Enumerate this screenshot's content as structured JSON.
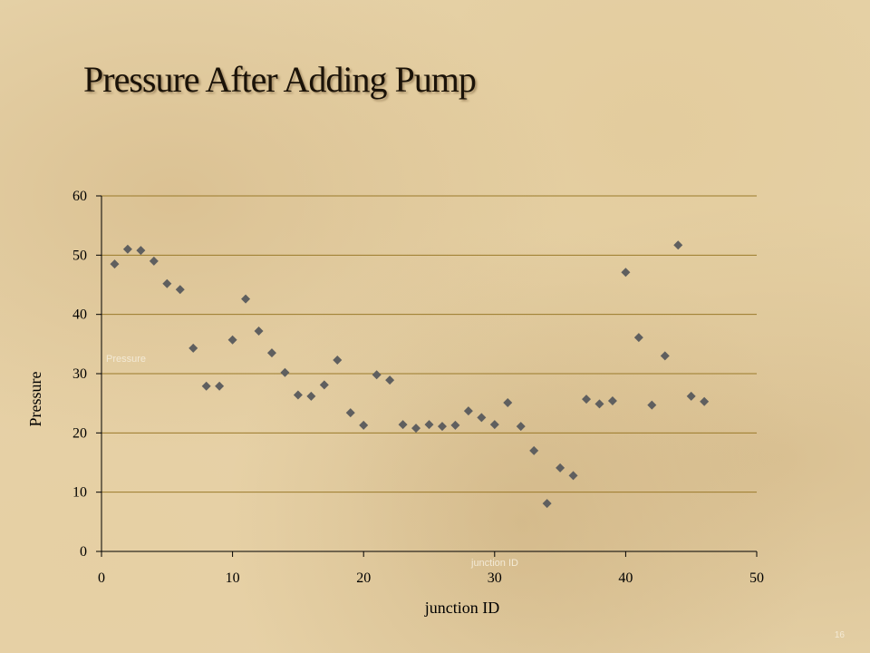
{
  "slide": {
    "title": "Pressure After Adding Pump",
    "page_number": "16"
  },
  "chart_data": {
    "type": "scatter",
    "title": "",
    "xlabel": "junction ID",
    "ylabel": "Pressure",
    "faint_ylabel": "Pressure",
    "faint_xlabel": "junction ID",
    "xlim": [
      0,
      50
    ],
    "ylim": [
      0,
      60
    ],
    "xticks": [
      "0",
      "10",
      "20",
      "30",
      "40",
      "50"
    ],
    "yticks": [
      "0",
      "10",
      "20",
      "30",
      "40",
      "50",
      "60"
    ],
    "grid": "horizontal",
    "marker_color": "#5f5f5f",
    "gridline_color": "#9a7a2a",
    "x": [
      1,
      2,
      3,
      4,
      5,
      6,
      7,
      8,
      9,
      10,
      11,
      12,
      13,
      14,
      15,
      16,
      17,
      18,
      19,
      20,
      21,
      22,
      23,
      24,
      25,
      26,
      27,
      28,
      29,
      30,
      31,
      32,
      33,
      34,
      35,
      36,
      37,
      38,
      39,
      40,
      41,
      42,
      43,
      44,
      45,
      46
    ],
    "y": [
      48.5,
      51,
      50.8,
      49,
      45.2,
      44.2,
      34.3,
      27.9,
      27.9,
      35.7,
      42.6,
      37.2,
      33.5,
      30.2,
      26.4,
      26.2,
      28.1,
      32.3,
      23.4,
      21.3,
      29.8,
      28.9,
      21.4,
      20.8,
      21.4,
      21.1,
      21.3,
      23.7,
      22.6,
      21.4,
      25.1,
      21.1,
      17.0,
      8.1,
      14.1,
      12.8,
      25.7,
      24.9,
      25.4,
      47.1,
      36.1,
      24.7,
      33.0,
      51.7,
      26.2,
      25.3
    ]
  }
}
